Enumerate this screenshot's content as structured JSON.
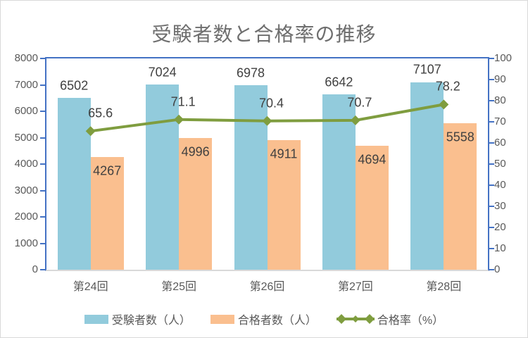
{
  "chart_data": {
    "type": "bar",
    "subtype": "bar+line-combo",
    "title": "受験者数と合格率の推移",
    "categories": [
      "第24回",
      "第25回",
      "第26回",
      "第27回",
      "第28回"
    ],
    "series": [
      {
        "name": "受験者数（人）",
        "type": "bar",
        "axis": "left",
        "color": "#92CBDC",
        "values": [
          6502,
          7024,
          6978,
          6642,
          7107
        ]
      },
      {
        "name": "合格者数（人）",
        "type": "bar",
        "axis": "left",
        "color": "#FABF8F",
        "values": [
          4267,
          4996,
          4911,
          4694,
          5558
        ]
      },
      {
        "name": "合格率（%）",
        "type": "line",
        "axis": "right",
        "color": "#7F9D3F",
        "values": [
          65.6,
          71.1,
          70.4,
          70.7,
          78.2
        ]
      }
    ],
    "left_axis": {
      "min": 0,
      "max": 8000,
      "step": 1000,
      "tick_labels": [
        "0",
        "1000",
        "2000",
        "3000",
        "4000",
        "5000",
        "6000",
        "7000",
        "8000"
      ]
    },
    "right_axis": {
      "min": 0,
      "max": 100,
      "step": 10,
      "tick_labels": [
        "0",
        "10",
        "20",
        "30",
        "40",
        "50",
        "60",
        "70",
        "80",
        "90",
        "100"
      ]
    },
    "grid": false,
    "legend_position": "bottom",
    "colors": {
      "axis_line": "#4472C4",
      "baseline": "#D9D9D9",
      "tick_text": "#595959",
      "data_label": "#404040",
      "title_text": "#6E6E6E",
      "frame_border": "#D9D9D9",
      "background": "#FFFFFF"
    }
  }
}
